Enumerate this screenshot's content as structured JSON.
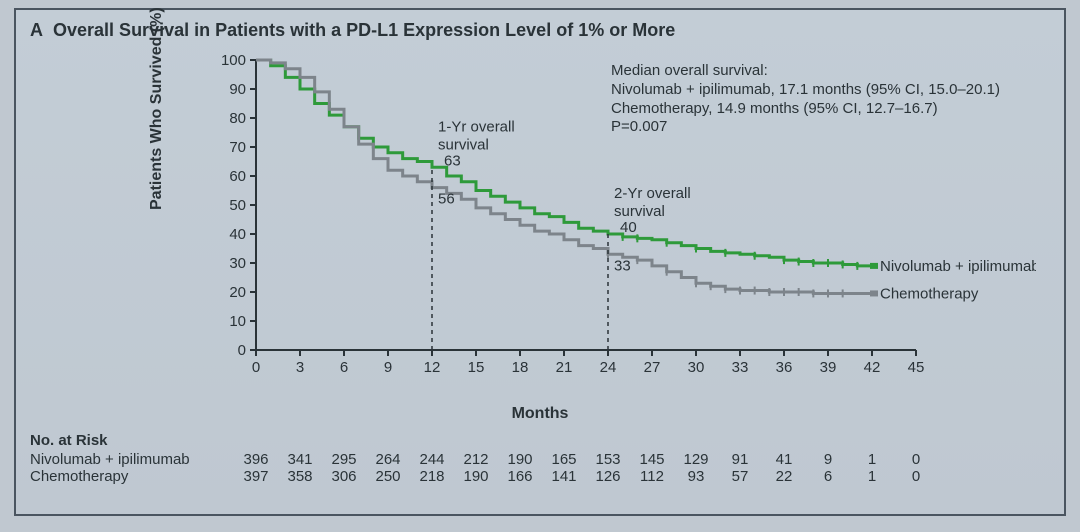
{
  "panel": {
    "label": "A",
    "title": "Overall Survival in Patients with a PD-L1 Expression Level of 1% or More"
  },
  "chart": {
    "type": "kaplan-meier",
    "background_color": "#c1cad3",
    "border_color": "#4a5560",
    "axis_color": "#2a3338",
    "text_color": "#2a3338",
    "xlabel": "Months",
    "ylabel": "Patients Who Survived (%)",
    "label_fontsize": 16,
    "tick_fontsize": 15,
    "xlim": [
      0,
      45
    ],
    "ylim": [
      0,
      100
    ],
    "xticks": [
      0,
      3,
      6,
      9,
      12,
      15,
      18,
      21,
      24,
      27,
      30,
      33,
      36,
      39,
      42,
      45
    ],
    "yticks": [
      0,
      10,
      20,
      30,
      40,
      50,
      60,
      70,
      80,
      90,
      100
    ],
    "line_width": 3,
    "censor_marker_size": 3,
    "reference_lines": {
      "color": "#2a3338",
      "dash": "4 4",
      "lines": [
        {
          "x": 12,
          "label_top": "1-Yr overall",
          "label_mid": "survival",
          "y_top": 63,
          "y_bot": 56
        },
        {
          "x": 24,
          "label_top": "2-Yr overall",
          "label_mid": "survival",
          "y_top": 40,
          "y_bot": 33
        }
      ]
    },
    "median_text": {
      "lines": [
        "Median overall survival:",
        "Nivolumab + ipilimumab, 17.1 months (95% CI, 15.0–20.1)",
        "Chemotherapy, 14.9 months (95% CI, 12.7–16.7)",
        "P=0.007"
      ],
      "fontsize": 15
    },
    "series": [
      {
        "name": "Nivolumab + ipilimumab",
        "color": "#2e9a3a",
        "label_end": "Nivolumab + ipilimumab",
        "points": [
          [
            0,
            100
          ],
          [
            1,
            98
          ],
          [
            2,
            94
          ],
          [
            3,
            90
          ],
          [
            4,
            85
          ],
          [
            5,
            81
          ],
          [
            6,
            77
          ],
          [
            7,
            73
          ],
          [
            8,
            70
          ],
          [
            9,
            68
          ],
          [
            10,
            66
          ],
          [
            11,
            65
          ],
          [
            12,
            63
          ],
          [
            13,
            60
          ],
          [
            14,
            58
          ],
          [
            15,
            55
          ],
          [
            16,
            53
          ],
          [
            17,
            51
          ],
          [
            18,
            49
          ],
          [
            19,
            47
          ],
          [
            20,
            46
          ],
          [
            21,
            44
          ],
          [
            22,
            42
          ],
          [
            23,
            41
          ],
          [
            24,
            40
          ],
          [
            25,
            39
          ],
          [
            26,
            38.5
          ],
          [
            27,
            38
          ],
          [
            28,
            37
          ],
          [
            29,
            36
          ],
          [
            30,
            35
          ],
          [
            31,
            34
          ],
          [
            32,
            33.5
          ],
          [
            33,
            33
          ],
          [
            34,
            32.5
          ],
          [
            35,
            32
          ],
          [
            36,
            31
          ],
          [
            37,
            30.5
          ],
          [
            38,
            30
          ],
          [
            39,
            30
          ],
          [
            40,
            29.5
          ],
          [
            41,
            29
          ],
          [
            42,
            29
          ]
        ],
        "censor_x": [
          25,
          26,
          28,
          30,
          32,
          34,
          36,
          37,
          38,
          39,
          40,
          41
        ]
      },
      {
        "name": "Chemotherapy",
        "color": "#7d848b",
        "label_end": "Chemotherapy",
        "points": [
          [
            0,
            100
          ],
          [
            1,
            99
          ],
          [
            2,
            97
          ],
          [
            3,
            94
          ],
          [
            4,
            89
          ],
          [
            5,
            83
          ],
          [
            6,
            77
          ],
          [
            7,
            71
          ],
          [
            8,
            66
          ],
          [
            9,
            62
          ],
          [
            10,
            60
          ],
          [
            11,
            58
          ],
          [
            12,
            56
          ],
          [
            13,
            54
          ],
          [
            14,
            52
          ],
          [
            15,
            49
          ],
          [
            16,
            47
          ],
          [
            17,
            45
          ],
          [
            18,
            43
          ],
          [
            19,
            41
          ],
          [
            20,
            40
          ],
          [
            21,
            38
          ],
          [
            22,
            36
          ],
          [
            23,
            35
          ],
          [
            24,
            33
          ],
          [
            25,
            32
          ],
          [
            26,
            31
          ],
          [
            27,
            29
          ],
          [
            28,
            27
          ],
          [
            29,
            25
          ],
          [
            30,
            23
          ],
          [
            31,
            22
          ],
          [
            32,
            21
          ],
          [
            33,
            20.5
          ],
          [
            34,
            20.5
          ],
          [
            35,
            20
          ],
          [
            36,
            20
          ],
          [
            37,
            20
          ],
          [
            38,
            19.5
          ],
          [
            39,
            19.5
          ],
          [
            40,
            19.5
          ],
          [
            41,
            19.5
          ],
          [
            42,
            19.5
          ]
        ],
        "censor_x": [
          24,
          26,
          28,
          30,
          31,
          32,
          33,
          34,
          35,
          36,
          37,
          38,
          39,
          40
        ]
      }
    ]
  },
  "risk_table": {
    "title": "No. at Risk",
    "x_values": [
      0,
      3,
      6,
      9,
      12,
      15,
      18,
      21,
      24,
      27,
      30,
      33,
      36,
      39,
      42,
      45
    ],
    "rows": [
      {
        "name": "Nivolumab + ipilimumab",
        "values": [
          396,
          341,
          295,
          264,
          244,
          212,
          190,
          165,
          153,
          145,
          129,
          91,
          41,
          9,
          1,
          0
        ]
      },
      {
        "name": "Chemotherapy",
        "values": [
          397,
          358,
          306,
          250,
          218,
          190,
          166,
          141,
          126,
          112,
          93,
          57,
          22,
          6,
          1,
          0
        ]
      }
    ],
    "fontsize": 15
  }
}
